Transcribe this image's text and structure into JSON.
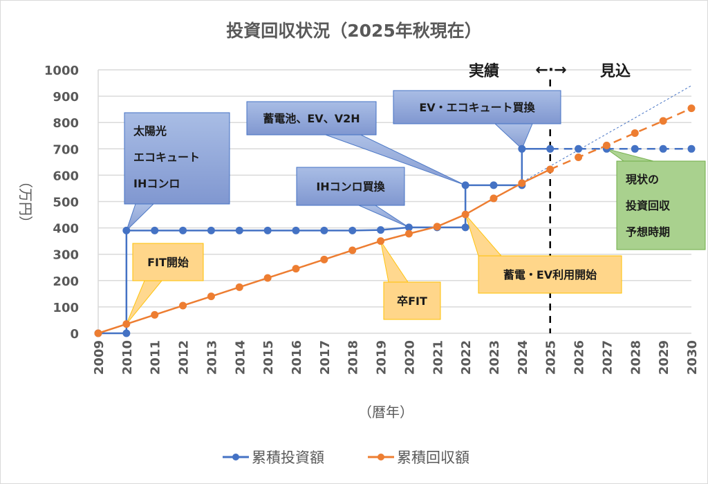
{
  "chart_data": {
    "type": "line",
    "title": "投資回収状況（2025年秋現在）",
    "xlabel": "（暦年）",
    "ylabel": "（万円）",
    "ylim": [
      0,
      1000
    ],
    "yticks": [
      "0",
      "100",
      "200",
      "300",
      "400",
      "500",
      "600",
      "700",
      "800",
      "900",
      "1000"
    ],
    "x": [
      "2009",
      "2010",
      "2011",
      "2012",
      "2013",
      "2014",
      "2015",
      "2016",
      "2017",
      "2018",
      "2019",
      "2020",
      "2021",
      "2022",
      "2023",
      "2024",
      "2025",
      "2026",
      "2027",
      "2028",
      "2029",
      "2030"
    ],
    "grid": true,
    "legend_position": "bottom",
    "series": [
      {
        "name": "累積投資額",
        "color": "#4472c4",
        "style": "step",
        "points": [
          {
            "x": 2009,
            "y": 0
          },
          {
            "x": 2010,
            "y": 0
          },
          {
            "x": 2010,
            "y": 390
          },
          {
            "x": 2011,
            "y": 390
          },
          {
            "x": 2012,
            "y": 390
          },
          {
            "x": 2013,
            "y": 390
          },
          {
            "x": 2014,
            "y": 390
          },
          {
            "x": 2015,
            "y": 390
          },
          {
            "x": 2016,
            "y": 390
          },
          {
            "x": 2017,
            "y": 390
          },
          {
            "x": 2018,
            "y": 390
          },
          {
            "x": 2019,
            "y": 392
          },
          {
            "x": 2020,
            "y": 402
          },
          {
            "x": 2021,
            "y": 402
          },
          {
            "x": 2022,
            "y": 402
          },
          {
            "x": 2022,
            "y": 562
          },
          {
            "x": 2023,
            "y": 562
          },
          {
            "x": 2024,
            "y": 562
          },
          {
            "x": 2024,
            "y": 700
          },
          {
            "x": 2025,
            "y": 700
          }
        ],
        "projection": [
          {
            "x": 2025,
            "y": 700
          },
          {
            "x": 2026,
            "y": 700
          },
          {
            "x": 2027,
            "y": 700
          },
          {
            "x": 2028,
            "y": 700
          },
          {
            "x": 2029,
            "y": 700
          },
          {
            "x": 2030,
            "y": 700
          }
        ]
      },
      {
        "name": "累積回収額",
        "color": "#ed7d31",
        "points": [
          {
            "x": 2009,
            "y": 0
          },
          {
            "x": 2010,
            "y": 35
          },
          {
            "x": 2011,
            "y": 70
          },
          {
            "x": 2012,
            "y": 105
          },
          {
            "x": 2013,
            "y": 140
          },
          {
            "x": 2014,
            "y": 175
          },
          {
            "x": 2015,
            "y": 210
          },
          {
            "x": 2016,
            "y": 245
          },
          {
            "x": 2017,
            "y": 280
          },
          {
            "x": 2018,
            "y": 315
          },
          {
            "x": 2019,
            "y": 350
          },
          {
            "x": 2020,
            "y": 378
          },
          {
            "x": 2021,
            "y": 405
          },
          {
            "x": 2022,
            "y": 451
          },
          {
            "x": 2023,
            "y": 512
          },
          {
            "x": 2024,
            "y": 570
          },
          {
            "x": 2025,
            "y": 622
          }
        ],
        "projection": [
          {
            "x": 2025,
            "y": 622
          },
          {
            "x": 2026,
            "y": 668
          },
          {
            "x": 2027,
            "y": 713
          },
          {
            "x": 2028,
            "y": 760
          },
          {
            "x": 2029,
            "y": 806
          },
          {
            "x": 2030,
            "y": 854
          }
        ]
      }
    ],
    "trendline": {
      "color": "#4472c4",
      "from": {
        "x": 2022,
        "y": 451
      },
      "to": {
        "x": 2030,
        "y": 940
      }
    },
    "divider": {
      "x": 2025,
      "color": "#000000"
    },
    "phase_labels": {
      "actual": "実績",
      "arrow": "←·→",
      "forecast": "見込"
    },
    "annotations": [
      {
        "id": "solar",
        "lines": [
          "太陽光",
          "エコキュート",
          "IHコンロ"
        ],
        "color": "#8faadc",
        "target": {
          "x": 2010,
          "y": 390
        }
      },
      {
        "id": "storage",
        "lines": [
          "蓄電池、EV、V2H"
        ],
        "color": "#8faadc",
        "target": {
          "x": 2022,
          "y": 562
        }
      },
      {
        "id": "ev-replace",
        "lines": [
          "EV・エコキュート買換"
        ],
        "color": "#8faadc",
        "target": {
          "x": 2024,
          "y": 700
        }
      },
      {
        "id": "ih-replace",
        "lines": [
          "IHコンロ買換"
        ],
        "color": "#8faadc",
        "target": {
          "x": 2020,
          "y": 402
        }
      },
      {
        "id": "fit-start",
        "lines": [
          "FIT開始"
        ],
        "color": "#ffd68a",
        "target": {
          "x": 2010,
          "y": 35
        }
      },
      {
        "id": "fit-end",
        "lines": [
          "卒FIT"
        ],
        "color": "#ffd68a",
        "target": {
          "x": 2019,
          "y": 350
        }
      },
      {
        "id": "storage-use",
        "lines": [
          "蓄電・EV利用開始"
        ],
        "color": "#ffd68a",
        "target": {
          "x": 2022,
          "y": 451
        }
      },
      {
        "id": "payback",
        "lines": [
          "現状の",
          "投資回収",
          "予想時期"
        ],
        "color": "#a9d18e",
        "target": {
          "x": 2027,
          "y": 700
        }
      }
    ]
  }
}
